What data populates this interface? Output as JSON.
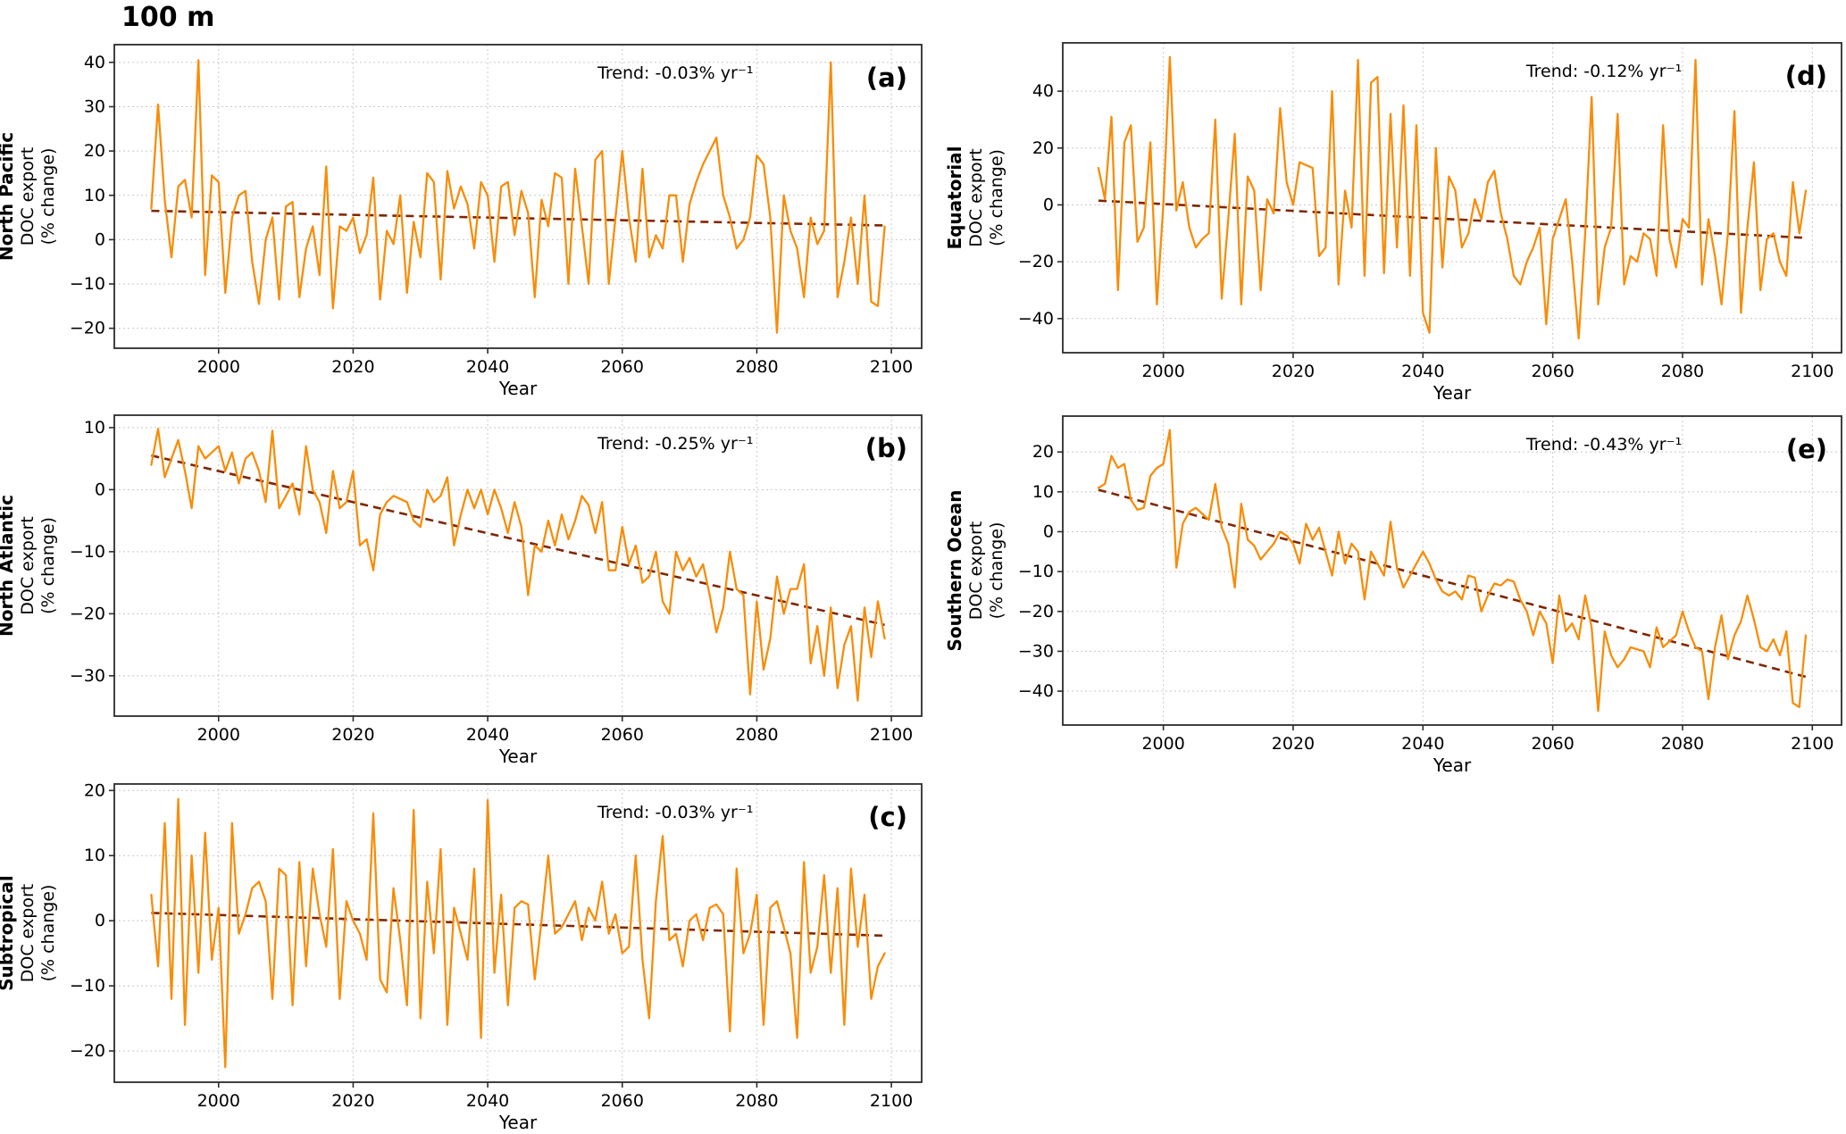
{
  "figure": {
    "title": "100 m"
  },
  "colors": {
    "series": "#F78D0A",
    "trend": "#7F2704",
    "grid": "#C8C8C8",
    "spine": "#2B2B2B",
    "text": "#000000",
    "background": "#FFFFFF"
  },
  "chart_data": [
    {
      "id": "a",
      "type": "line",
      "panel_label": "(a)",
      "region": "North Pacific",
      "ylabel_lines": [
        "DOC export",
        "(% change)"
      ],
      "xlabel": "Year",
      "trend_label": "Trend: -0.03% yr⁻¹",
      "x_start": 1990,
      "x_step": 1,
      "xlim": [
        1984.5,
        2104.5
      ],
      "ylim": [
        -24.5,
        44
      ],
      "xticks": [
        2000,
        2020,
        2040,
        2060,
        2080,
        2100
      ],
      "yticks": [
        -20,
        -10,
        0,
        10,
        20,
        30,
        40
      ],
      "grid": true,
      "legend": "none",
      "values": [
        7,
        30.5,
        9,
        -4,
        12,
        13.5,
        5,
        40.5,
        -8,
        14.5,
        13,
        -12,
        5,
        10,
        11,
        -5,
        -14.5,
        0,
        5,
        -13.5,
        7.5,
        8.5,
        -13,
        -2,
        3,
        -8,
        16.5,
        -15.5,
        3,
        2,
        5,
        -3,
        1,
        14,
        -13.5,
        2,
        -1,
        10,
        -12,
        4,
        -4,
        15,
        13,
        -9,
        15.5,
        7,
        12,
        8,
        -2,
        13,
        10,
        -5,
        12,
        13,
        1,
        11,
        6,
        -13,
        9,
        3,
        15,
        14,
        -10,
        16,
        3,
        -10,
        18,
        20,
        -10,
        5,
        20,
        5,
        -5,
        16,
        -4,
        1,
        -2,
        10,
        10,
        -5,
        8,
        13,
        17,
        20,
        23,
        10,
        5,
        -2,
        0,
        5,
        19,
        17,
        5,
        -21,
        10,
        2,
        -2,
        -13,
        5,
        -1,
        2,
        40,
        -13,
        -5,
        5,
        -10,
        10,
        -14,
        -15,
        3
      ],
      "trend_line": {
        "x": [
          1990,
          2099
        ],
        "y": [
          6.5,
          3.2
        ]
      }
    },
    {
      "id": "b",
      "type": "line",
      "panel_label": "(b)",
      "region": "North Atlantic",
      "ylabel_lines": [
        "DOC export",
        "(% change)"
      ],
      "xlabel": "Year",
      "trend_label": "Trend: -0.25% yr⁻¹",
      "x_start": 1990,
      "x_step": 1,
      "xlim": [
        1984.5,
        2104.5
      ],
      "ylim": [
        -36.5,
        12
      ],
      "xticks": [
        2000,
        2020,
        2040,
        2060,
        2080,
        2100
      ],
      "yticks": [
        -30,
        -20,
        -10,
        0,
        10
      ],
      "grid": true,
      "legend": "none",
      "values": [
        4,
        9.8,
        2,
        5,
        8,
        3,
        -3,
        7,
        5,
        6,
        7,
        3,
        6,
        1,
        5,
        6,
        3,
        -2,
        9.5,
        -3,
        -1,
        1,
        -4,
        7,
        0,
        -2,
        -7,
        3,
        -3,
        -2,
        3,
        -9,
        -8,
        -13,
        -4,
        -2,
        -1,
        -1.5,
        -2,
        -5,
        -6,
        0,
        -2,
        -1,
        2,
        -9,
        -4,
        0,
        -3,
        0,
        -4,
        0,
        -3,
        -7,
        -2,
        -6,
        -17,
        -9,
        -10,
        -5,
        -9,
        -4,
        -8,
        -5,
        -1,
        -2.5,
        -7,
        -2,
        -13,
        -13,
        -6,
        -12,
        -9,
        -15,
        -14,
        -10,
        -18,
        -20,
        -10,
        -13,
        -11,
        -14,
        -12,
        -17,
        -23,
        -19,
        -10,
        -16,
        -17,
        -33,
        -18,
        -29,
        -24,
        -14,
        -20,
        -16,
        -16,
        -12,
        -28,
        -22,
        -30,
        -19,
        -32,
        -25,
        -22,
        -34,
        -19,
        -27,
        -18,
        -24
      ],
      "trend_line": {
        "x": [
          1990,
          2099
        ],
        "y": [
          5.5,
          -21.8
        ]
      }
    },
    {
      "id": "c",
      "type": "line",
      "panel_label": "(c)",
      "region": "Subtropical",
      "ylabel_lines": [
        "DOC export",
        "(% change)"
      ],
      "xlabel": "Year",
      "trend_label": "Trend: -0.03% yr⁻¹",
      "x_start": 1990,
      "x_step": 1,
      "xlim": [
        1984.5,
        2104.5
      ],
      "ylim": [
        -24.8,
        21
      ],
      "xticks": [
        2000,
        2020,
        2040,
        2060,
        2080,
        2100
      ],
      "yticks": [
        -20,
        -10,
        0,
        10,
        20
      ],
      "grid": true,
      "legend": "none",
      "values": [
        4,
        -7,
        15,
        -12,
        18.7,
        -16,
        10,
        -8,
        13.5,
        -6,
        2,
        -22.5,
        15,
        -2,
        1,
        5,
        6,
        3,
        -12,
        8,
        7,
        -13,
        9,
        -7,
        8,
        1,
        -4,
        11,
        -12,
        3,
        0,
        -2,
        -6,
        16.5,
        -9,
        -11,
        5,
        -3,
        -13,
        17,
        -15,
        6,
        -5,
        11,
        -16,
        2,
        -2,
        -6,
        8,
        -18,
        18.5,
        -8,
        4,
        -13,
        2,
        3,
        2.5,
        -9,
        0,
        10,
        -2,
        -1,
        1,
        3,
        -3,
        2,
        0,
        6,
        -2,
        1,
        -5,
        -4,
        10,
        -6,
        -15,
        3,
        13,
        -3,
        -2,
        -7,
        0,
        1,
        -3,
        2,
        2.5,
        1,
        -17,
        8,
        -5,
        -2,
        4,
        -16,
        2,
        3,
        -1,
        -5,
        -18,
        9,
        -8,
        -4,
        7,
        -8,
        5,
        -16,
        8,
        -4,
        4,
        -12,
        -7,
        -5
      ],
      "trend_line": {
        "x": [
          1990,
          2099
        ],
        "y": [
          1.2,
          -2.3
        ]
      }
    },
    {
      "id": "d",
      "type": "line",
      "panel_label": "(d)",
      "region": "Equatorial",
      "ylabel_lines": [
        "DOC export",
        "(% change)"
      ],
      "xlabel": "Year",
      "trend_label": "Trend: -0.12% yr⁻¹",
      "x_start": 1990,
      "x_step": 1,
      "xlim": [
        1984.5,
        2104.5
      ],
      "ylim": [
        -52,
        57
      ],
      "xticks": [
        2000,
        2020,
        2040,
        2060,
        2080,
        2100
      ],
      "yticks": [
        -40,
        -20,
        0,
        20,
        40
      ],
      "grid": true,
      "legend": "none",
      "values": [
        13,
        2,
        31,
        -30,
        22,
        28,
        -13,
        -8,
        22,
        -35,
        0,
        52,
        -2,
        8,
        -8,
        -15,
        -12,
        -10,
        30,
        -33,
        -5,
        25,
        -35,
        10,
        5,
        -30,
        2,
        -3,
        34,
        8,
        0,
        15,
        14,
        13,
        -18,
        -15,
        40,
        -28,
        5,
        -8,
        51,
        -25,
        43,
        45,
        -24,
        32,
        -15,
        35,
        -25,
        28,
        -38,
        -45,
        20,
        -22,
        10,
        5,
        -15,
        -10,
        2,
        -5,
        8,
        12,
        -3,
        -12,
        -25,
        -28,
        -20,
        -15,
        -8,
        -42,
        -12,
        -5,
        2,
        -20,
        -47,
        -10,
        38,
        -35,
        -15,
        -8,
        32,
        -28,
        -18,
        -20,
        -10,
        -12,
        -25,
        28,
        -12,
        -22,
        -5,
        -8,
        51,
        -28,
        -5,
        -18,
        -35,
        -10,
        33,
        -38,
        -8,
        15,
        -30,
        -12,
        -10,
        -20,
        -25,
        8,
        -10,
        5
      ],
      "trend_line": {
        "x": [
          1990,
          2099
        ],
        "y": [
          1.5,
          -11.6
        ]
      }
    },
    {
      "id": "e",
      "type": "line",
      "panel_label": "(e)",
      "region": "Southern Ocean",
      "ylabel_lines": [
        "DOC export",
        "(% change)"
      ],
      "xlabel": "Year",
      "trend_label": "Trend: -0.43% yr⁻¹",
      "x_start": 1990,
      "x_step": 1,
      "xlim": [
        1984.5,
        2104.5
      ],
      "ylim": [
        -48.5,
        29
      ],
      "xticks": [
        2000,
        2020,
        2040,
        2060,
        2080,
        2100
      ],
      "yticks": [
        -40,
        -30,
        -20,
        -10,
        0,
        10,
        20
      ],
      "grid": true,
      "legend": "none",
      "values": [
        11,
        12,
        19,
        16,
        17,
        8,
        5.5,
        6,
        14,
        16,
        17,
        25.5,
        -9,
        2,
        5,
        6,
        4.5,
        3,
        12,
        1,
        -3,
        -14,
        7,
        -2,
        -3.5,
        -7,
        -5,
        -3,
        0,
        -1,
        -3,
        -8,
        2,
        -2,
        1,
        -5,
        -11,
        0,
        -8,
        -3,
        -5,
        -17,
        -5,
        -8,
        -11,
        2.5,
        -9,
        -14,
        -11,
        -8,
        -5,
        -8,
        -12,
        -15,
        -16,
        -15,
        -17,
        -11,
        -11.5,
        -20,
        -16,
        -13,
        -13.5,
        -12,
        -12.5,
        -17,
        -20,
        -26,
        -20,
        -23,
        -33,
        -16,
        -25,
        -23,
        -27,
        -16,
        -24,
        -45,
        -25,
        -31,
        -34,
        -32,
        -29,
        -29.5,
        -30,
        -34,
        -24,
        -29,
        -27.5,
        -26,
        -20,
        -25,
        -29,
        -30,
        -42,
        -29,
        -21,
        -32,
        -26,
        -22.5,
        -16,
        -22,
        -29,
        -30,
        -27,
        -31,
        -25,
        -43,
        -44,
        -26
      ],
      "trend_line": {
        "x": [
          1990,
          2099
        ],
        "y": [
          10.5,
          -36.4
        ]
      }
    }
  ]
}
